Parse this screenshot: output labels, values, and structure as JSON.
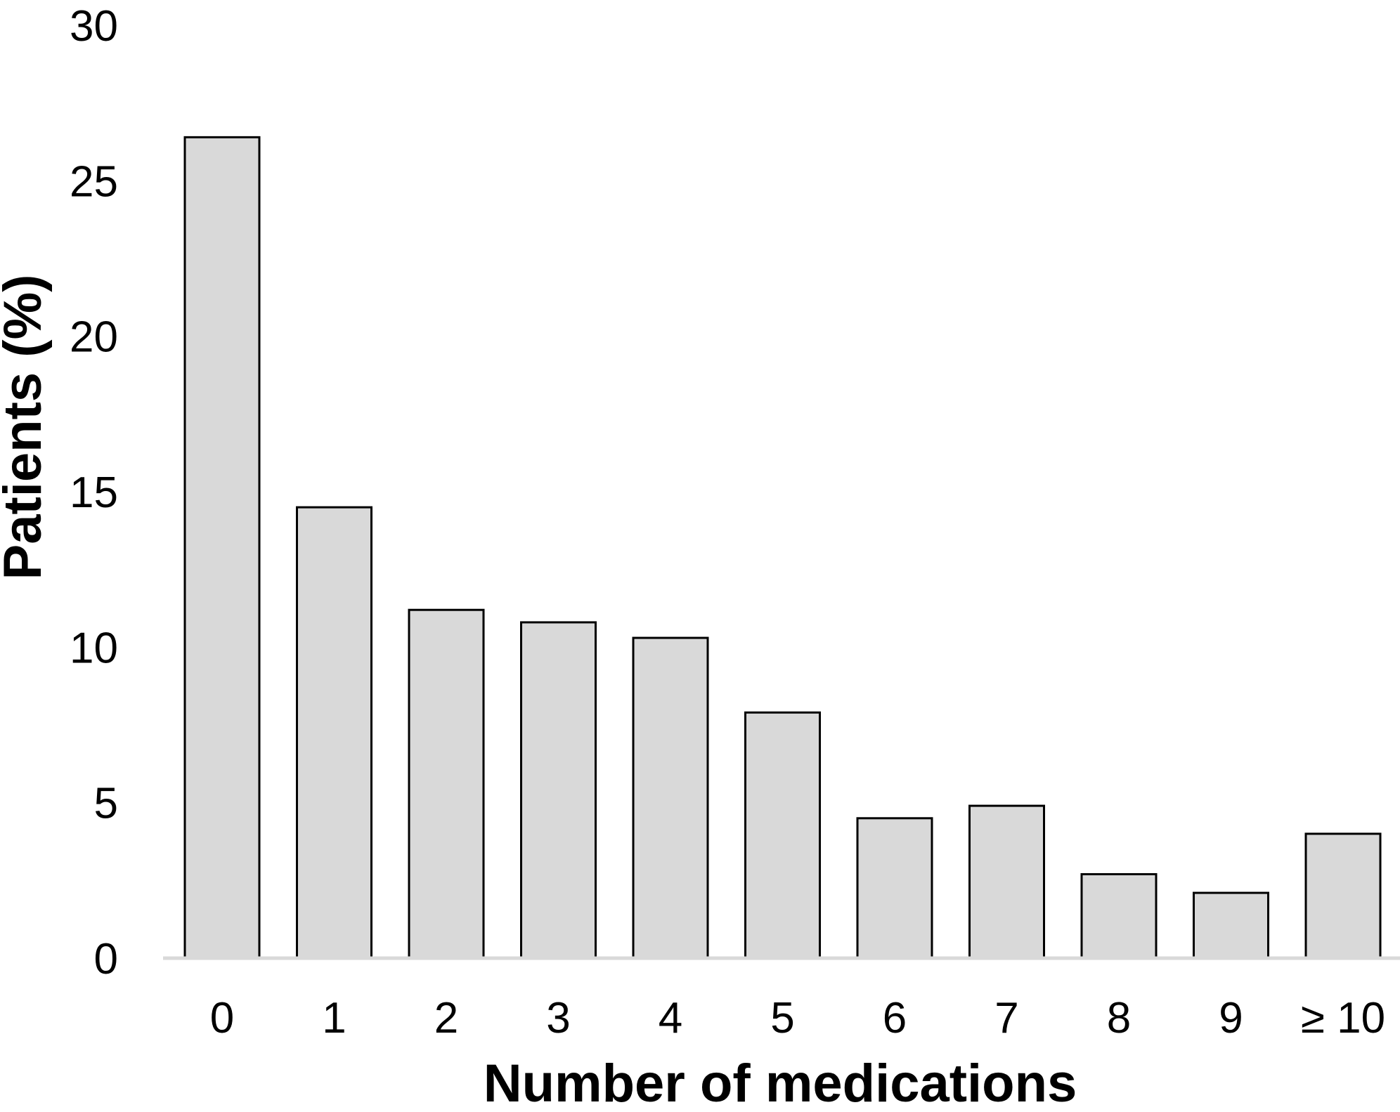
{
  "chart_data": {
    "type": "bar",
    "categories": [
      "0",
      "1",
      "2",
      "3",
      "4",
      "5",
      "6",
      "7",
      "8",
      "9",
      "≥ 10"
    ],
    "values": [
      26.4,
      14.5,
      11.2,
      10.8,
      10.3,
      7.9,
      4.5,
      4.9,
      2.7,
      2.1,
      4.0
    ],
    "xlabel": "Number of medications",
    "ylabel": "Patients (%)",
    "ylim": [
      0,
      30
    ],
    "yticks": [
      "0",
      "5",
      "10",
      "15",
      "20",
      "25",
      "30"
    ],
    "grid": false,
    "legend": "none",
    "bar_color": "#d9d9d9",
    "bar_edge_color": "#000000",
    "axis_color": "#d9d9d9"
  }
}
